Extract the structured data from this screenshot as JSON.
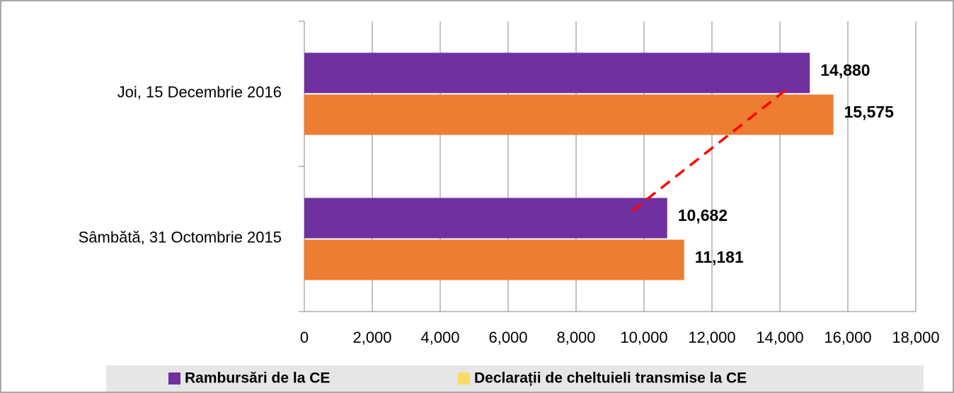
{
  "chart_data": {
    "type": "barh",
    "categories": [
      "Joi, 15 Decembrie 2016",
      "Sâmbătă, 31 Octombrie 2015"
    ],
    "series": [
      {
        "name": "Rambursări de la CE",
        "color": "#7030a0",
        "legend_color": "#7030a0",
        "values": [
          14880,
          10682
        ],
        "value_labels": [
          "14,880",
          "10,682"
        ]
      },
      {
        "name": "Declarații de cheltuieli transmise la CE",
        "color": "#ed7d31",
        "legend_color": "#ffd966",
        "values": [
          15575,
          11181
        ],
        "value_labels": [
          "15,575",
          "11,181"
        ]
      }
    ],
    "xlim": [
      0,
      18000
    ],
    "xticks": [
      0,
      {
        "value": 2000,
        "label": "2,000"
      },
      {
        "value": 4000,
        "label": "4,000"
      },
      {
        "value": 6000,
        "label": "6,000"
      },
      {
        "value": 8000,
        "label": "8,000"
      },
      {
        "value": 10000,
        "label": "10,000"
      },
      {
        "value": 12000,
        "label": "12,000"
      },
      {
        "value": 14000,
        "label": "14,000"
      },
      {
        "value": 16000,
        "label": "16,000"
      },
      {
        "value": 18000,
        "label": "18,000"
      }
    ],
    "grid": true,
    "legend": "bottom"
  }
}
